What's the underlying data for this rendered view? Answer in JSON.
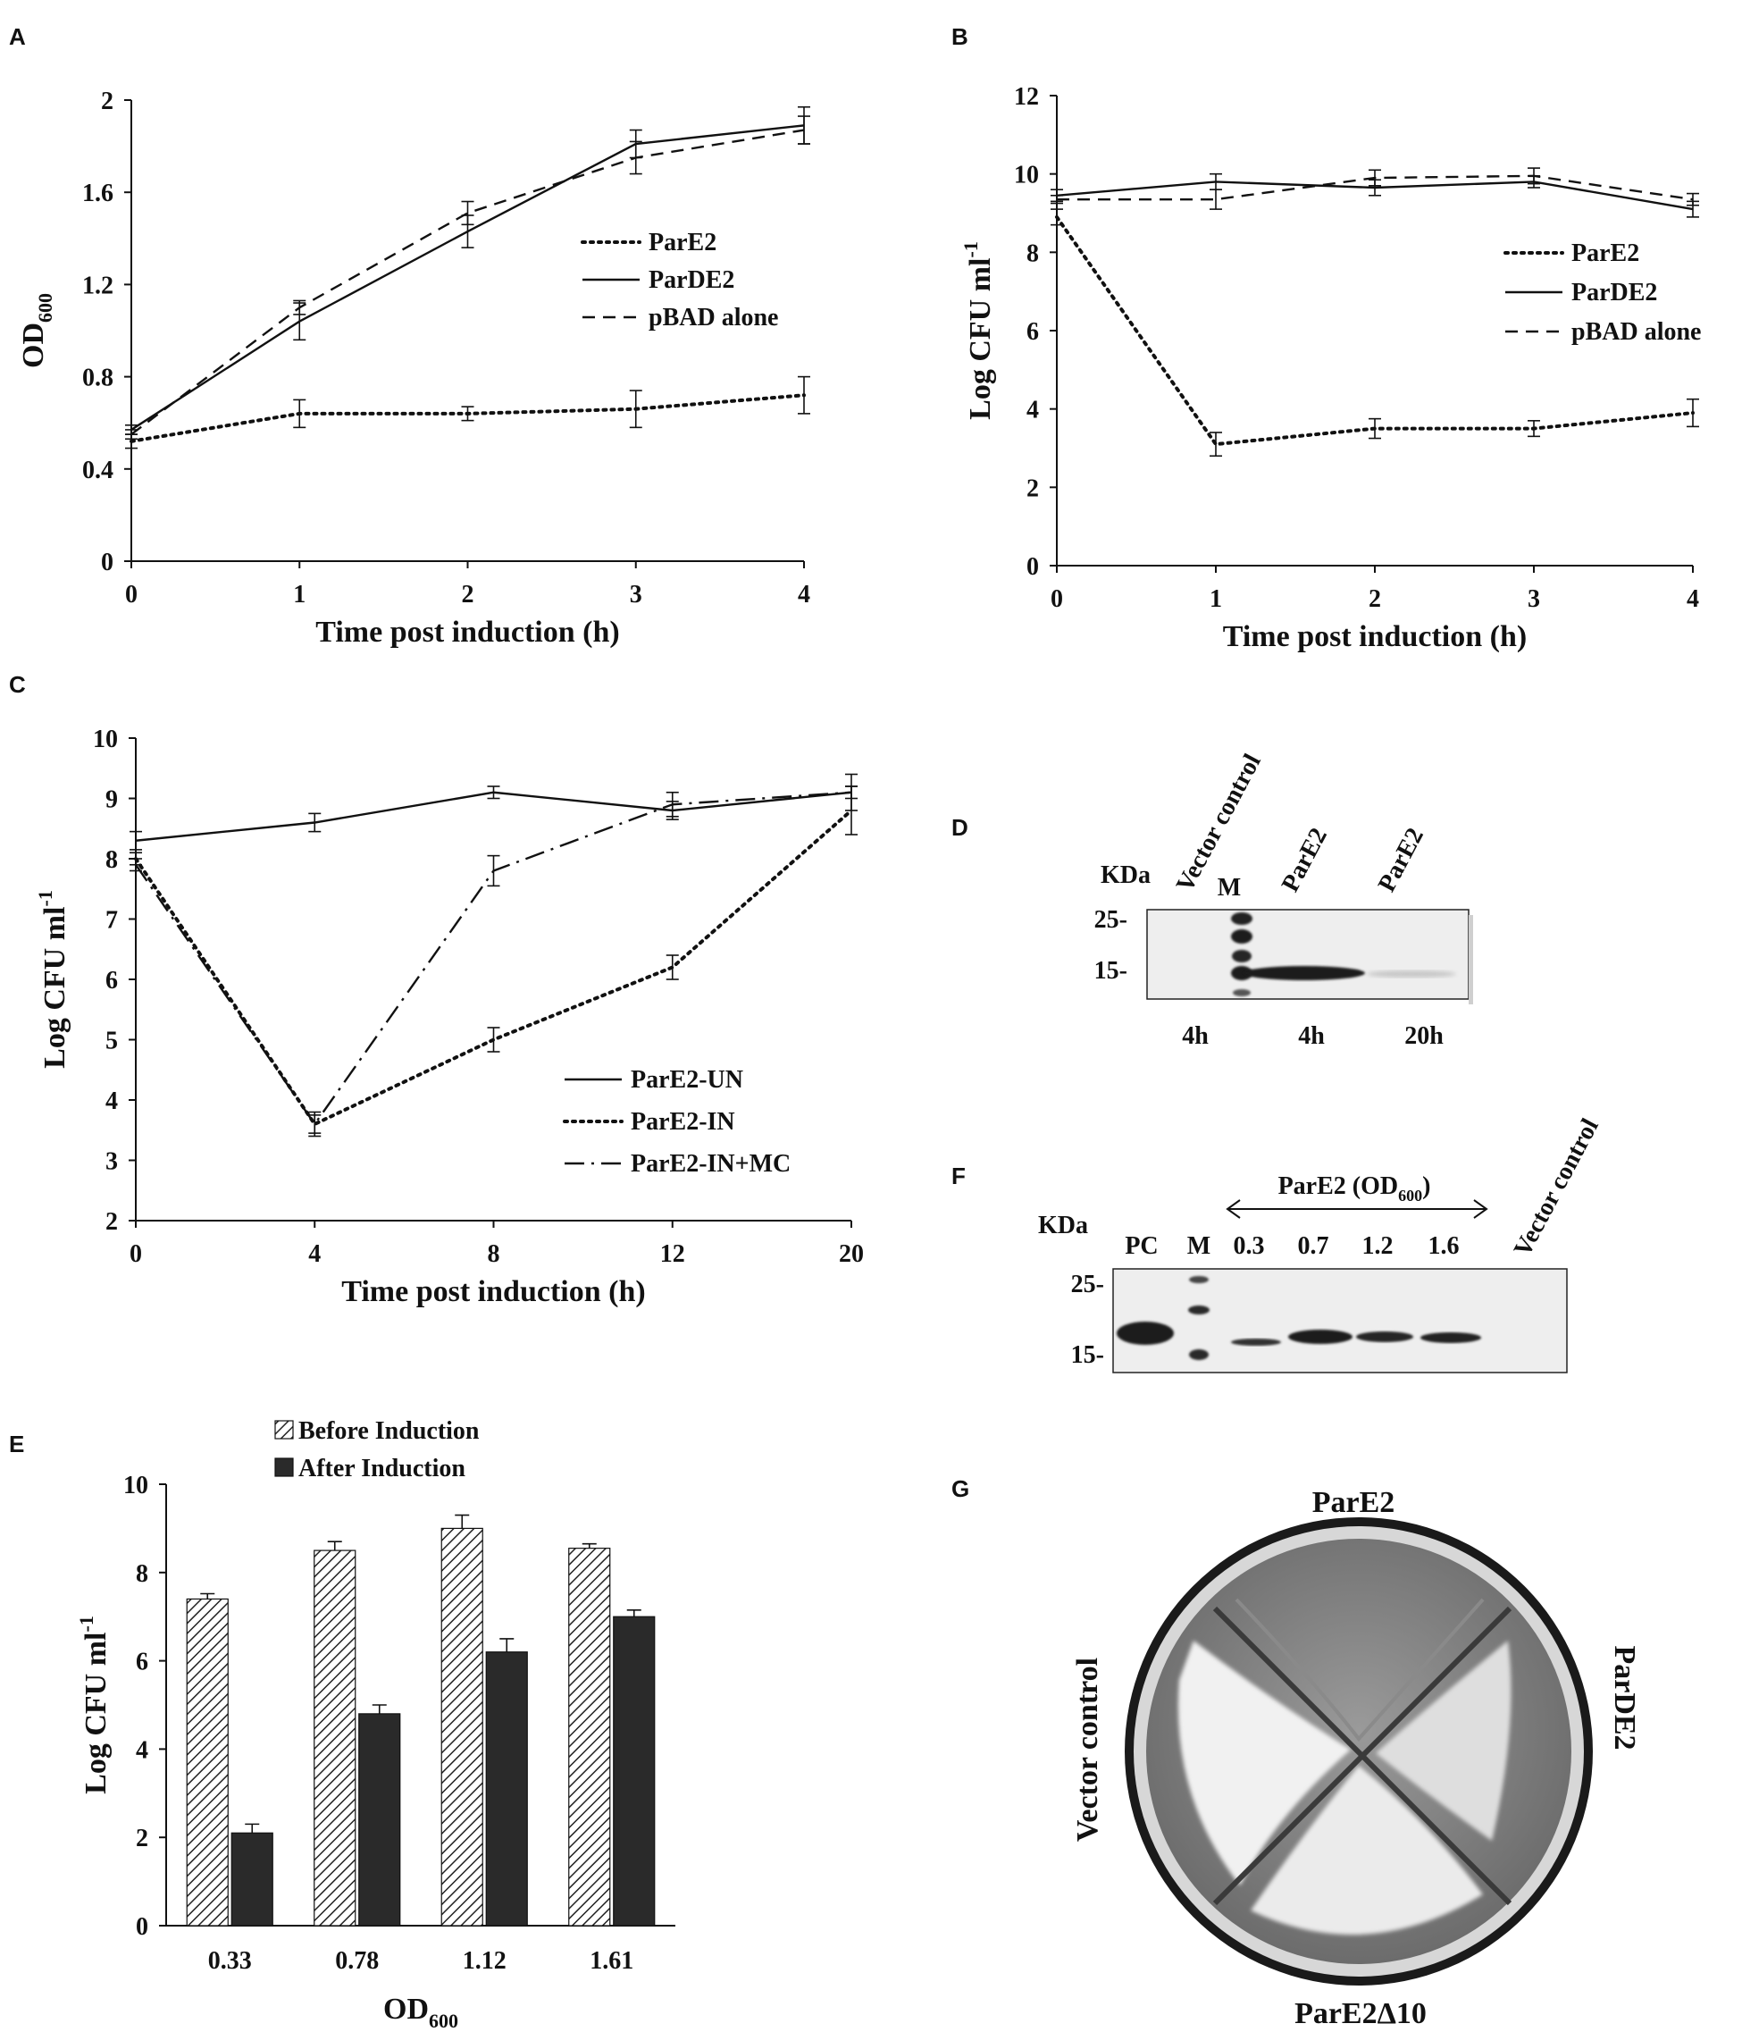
{
  "panels": {
    "a": "A",
    "b": "B",
    "c": "C",
    "d": "D",
    "e": "E",
    "f": "F",
    "g": "G"
  },
  "chart_data": [
    {
      "id": "A",
      "type": "line",
      "xlabel": "Time post induction (h)",
      "ylabel": "OD600",
      "ylabel_main": "OD",
      "ylabel_sub": "600",
      "x": [
        0,
        1,
        2,
        3,
        4
      ],
      "xticks": [
        "0",
        "1",
        "2",
        "3",
        "4"
      ],
      "ylim": [
        0,
        2
      ],
      "yticks": [
        "0",
        "0.4",
        "0.8",
        "1.2",
        "1.6",
        "2"
      ],
      "legend_position": "center-right",
      "series": [
        {
          "name": "ParE2",
          "style": "dotted",
          "values": [
            0.52,
            0.64,
            0.64,
            0.66,
            0.72
          ],
          "errors": [
            0.03,
            0.06,
            0.03,
            0.08,
            0.08
          ]
        },
        {
          "name": "ParDE2",
          "style": "solid",
          "values": [
            0.57,
            1.04,
            1.43,
            1.81,
            1.89
          ],
          "errors": [
            0.02,
            0.08,
            0.07,
            0.06,
            0.08
          ]
        },
        {
          "name": "pBAD alone",
          "style": "dashed",
          "values": [
            0.55,
            1.1,
            1.51,
            1.75,
            1.87
          ],
          "errors": [
            0.02,
            0.03,
            0.05,
            0.07,
            0.06
          ]
        }
      ]
    },
    {
      "id": "B",
      "type": "line",
      "xlabel": "Time post induction (h)",
      "ylabel": "Log CFU ml-1",
      "ylabel_main": "Log CFU ml",
      "ylabel_sup": "-1",
      "x": [
        0,
        1,
        2,
        3,
        4
      ],
      "xticks": [
        "0",
        "1",
        "2",
        "3",
        "4"
      ],
      "ylim": [
        0,
        12
      ],
      "yticks": [
        "0",
        "2",
        "4",
        "6",
        "8",
        "10",
        "12"
      ],
      "legend_position": "center-right",
      "series": [
        {
          "name": "ParE2",
          "style": "dotted",
          "values": [
            8.9,
            3.1,
            3.5,
            3.5,
            3.9
          ],
          "errors": [
            0.2,
            0.3,
            0.25,
            0.2,
            0.35
          ]
        },
        {
          "name": "ParDE2",
          "style": "solid",
          "values": [
            9.45,
            9.8,
            9.65,
            9.8,
            9.1
          ],
          "errors": [
            0.15,
            0.2,
            0.2,
            0.15,
            0.2
          ]
        },
        {
          "name": "pBAD alone",
          "style": "dashed",
          "values": [
            9.35,
            9.35,
            9.9,
            9.95,
            9.35
          ],
          "errors": [
            0.1,
            0.25,
            0.2,
            0.2,
            0.15
          ]
        }
      ]
    },
    {
      "id": "C",
      "type": "line",
      "xlabel": "Time post induction (h)",
      "ylabel": "Log CFU ml-1",
      "ylabel_main": "Log CFU ml",
      "ylabel_sup": "-1",
      "x": [
        0,
        4,
        8,
        12,
        20
      ],
      "xticks": [
        "0",
        "4",
        "8",
        "12",
        "20"
      ],
      "ylim": [
        2,
        10
      ],
      "yticks": [
        "2",
        "3",
        "4",
        "5",
        "6",
        "7",
        "8",
        "9",
        "10"
      ],
      "legend_position": "bottom-right",
      "series": [
        {
          "name": "ParE2-UN",
          "style": "solid",
          "values": [
            8.3,
            8.6,
            9.1,
            8.8,
            9.1
          ],
          "errors": [
            0.15,
            0.15,
            0.1,
            0.15,
            0.1
          ]
        },
        {
          "name": "ParE2-IN",
          "style": "dotted",
          "values": [
            8.0,
            3.6,
            5.0,
            6.2,
            8.8
          ],
          "errors": [
            0.1,
            0.2,
            0.2,
            0.2,
            0.4
          ]
        },
        {
          "name": "ParE2-IN+MC",
          "style": "dashdot",
          "values": [
            7.9,
            3.6,
            7.8,
            8.9,
            9.1
          ],
          "errors": [
            0.1,
            0.15,
            0.25,
            0.2,
            0.3
          ]
        }
      ]
    },
    {
      "id": "E",
      "type": "bar",
      "xlabel": "OD600",
      "xlabel_main": "OD",
      "xlabel_sub": "600",
      "ylabel": "Log CFU ml-1",
      "ylabel_main": "Log CFU ml",
      "ylabel_sup": "-1",
      "categories": [
        "0.33",
        "0.78",
        "1.12",
        "1.61"
      ],
      "ylim": [
        0,
        10
      ],
      "yticks": [
        "0",
        "2",
        "4",
        "6",
        "8",
        "10"
      ],
      "legend_position": "top",
      "series": [
        {
          "name": "Before Induction",
          "fill": "hatched",
          "values": [
            7.4,
            8.5,
            9.0,
            8.55
          ],
          "errors": [
            0.12,
            0.2,
            0.3,
            0.1
          ]
        },
        {
          "name": "After Induction",
          "fill": "solid",
          "values": [
            2.1,
            4.8,
            6.2,
            7.0
          ],
          "errors": [
            0.2,
            0.2,
            0.3,
            0.15
          ]
        }
      ]
    }
  ],
  "blot_d": {
    "kda": "KDa",
    "markers": [
      "25-",
      "15-"
    ],
    "lanes": [
      {
        "top": "Vector control",
        "bottom": "4h"
      },
      {
        "top": "M",
        "bottom": ""
      },
      {
        "top": "ParE2",
        "bottom": "4h"
      },
      {
        "top": "ParE2",
        "bottom": "20h"
      }
    ]
  },
  "blot_f": {
    "kda": "KDa",
    "markers": [
      "25-",
      "15-"
    ],
    "group_main": "ParE2 (OD",
    "group_sub": "600",
    "group_end": ")",
    "lanes": [
      "PC",
      "M",
      "0.3",
      "0.7",
      "1.2",
      "1.6",
      "Vector control"
    ]
  },
  "plate_g": {
    "top": "ParE2",
    "right": "ParDE2",
    "bottom": "ParE2Δ10",
    "left": "Vector control"
  },
  "colors": {
    "ink": "#111111",
    "bar_after": "#2a2a2a",
    "blot_bg": "#efefef"
  }
}
